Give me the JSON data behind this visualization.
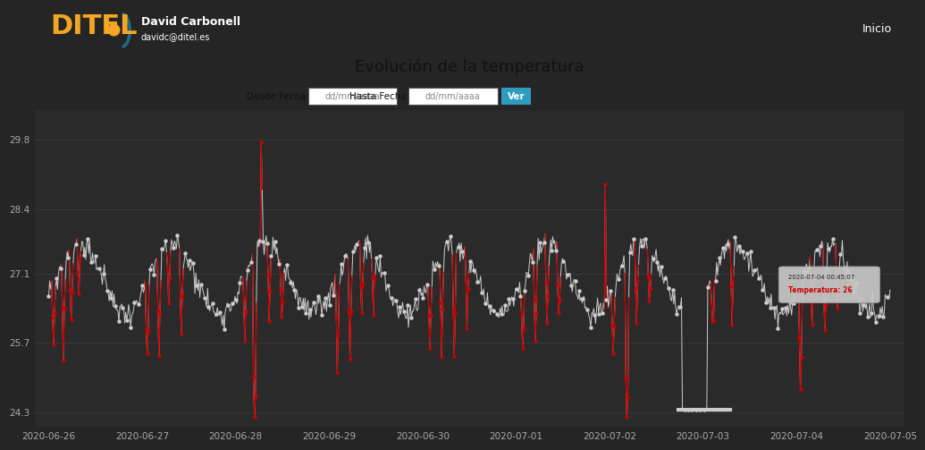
{
  "title": "Evolución de la temperatura",
  "header_bg": "#2e9bbf",
  "header_text": "David Carbonell",
  "header_sub": "davidc@ditel.es",
  "header_brand": "DITEL",
  "nav_text": "Inicio",
  "title_bar_bg": "#9e9e9e",
  "filter_bar_bg": "#8a8a8a",
  "chart_bg": "#2a2a2a",
  "page_bg": "#252525",
  "line_color_white": "#cccccc",
  "line_color_red": "#cc0000",
  "dot_color_white": "#d0d0d0",
  "dot_color_red": "#cc0000",
  "grid_color": "#3a3a3a",
  "tick_color": "#aaaaaa",
  "yticks": [
    24.3,
    25.7,
    27.1,
    28.4,
    29.8
  ],
  "xtick_labels": [
    "2020-06-26",
    "2020-06-27",
    "2020-06-28",
    "2020-06-29",
    "2020-06-30",
    "2020-07-01",
    "2020-07-02",
    "2020-07-03",
    "2020-07-04",
    "2020-07-05"
  ],
  "tooltip_text1": "2020-07-04 00:45:07",
  "tooltip_text2": "Temperatura: 26"
}
